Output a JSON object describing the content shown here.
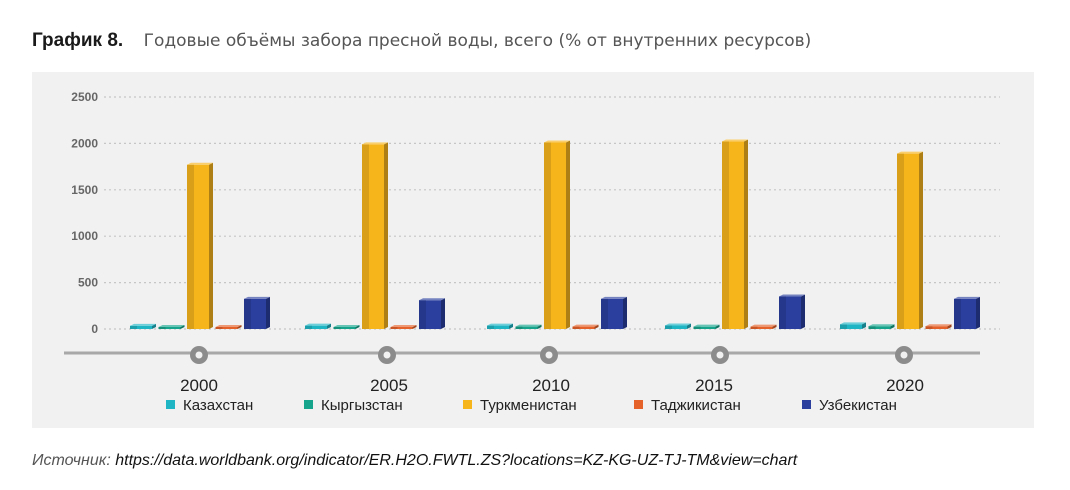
{
  "header": {
    "label": "График 8.",
    "title": "Годовые объёмы забора пресной воды, всего (% от внутренних ресурсов)"
  },
  "source": {
    "label": "Источник:",
    "url": "https://data.worldbank.org/indicator/ER.H2O.FWTL.ZS?locations=KZ-KG-UZ-TJ-TM&view=chart"
  },
  "chart_data": {
    "type": "bar",
    "title": "Годовые объёмы забора пресной воды, всего (% от внутренних ресурсов)",
    "categories": [
      "2000",
      "2005",
      "2010",
      "2015",
      "2020"
    ],
    "ylim": [
      0,
      2500
    ],
    "yticks": [
      0,
      500,
      1000,
      1500,
      2000,
      2500
    ],
    "grid": true,
    "legend_position": "bottom",
    "series": [
      {
        "name": "Казахстан",
        "color": "#1fb5c4",
        "values": [
          34,
          36,
          37,
          38,
          50
        ]
      },
      {
        "name": "Кыргызстан",
        "color": "#17a48c",
        "values": [
          18,
          20,
          26,
          25,
          30
        ]
      },
      {
        "name": "Туркменистан",
        "color": "#f7b51c",
        "values": [
          1770,
          1990,
          2010,
          2020,
          1890
        ]
      },
      {
        "name": "Таджикистан",
        "color": "#e5622a",
        "values": [
          20,
          20,
          26,
          25,
          30
        ]
      },
      {
        "name": "Узбекистан",
        "color": "#2a3f9e",
        "values": [
          325,
          310,
          325,
          350,
          325
        ]
      }
    ]
  }
}
